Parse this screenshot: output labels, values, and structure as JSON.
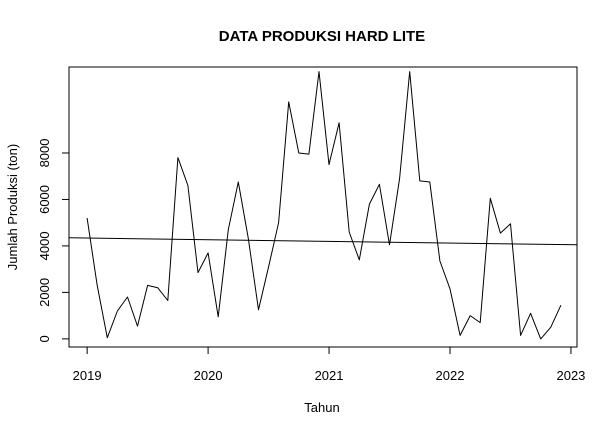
{
  "chart_data": {
    "type": "line",
    "title": "DATA PRODUKSI HARD LITE",
    "xlabel": "Tahun",
    "ylabel": "Jumlah Produksi (ton)",
    "xlim": [
      2018.85,
      2023.05
    ],
    "ylim": [
      -350,
      11700
    ],
    "x_ticks": [
      {
        "value": 2019,
        "label": "2019"
      },
      {
        "value": 2020,
        "label": "2020"
      },
      {
        "value": 2021,
        "label": "2021"
      },
      {
        "value": 2022,
        "label": "2022"
      },
      {
        "value": 2023,
        "label": "2023"
      }
    ],
    "y_ticks": [
      {
        "value": 0,
        "label": "0"
      },
      {
        "value": 2000,
        "label": "2000"
      },
      {
        "value": 4000,
        "label": "4000"
      },
      {
        "value": 6000,
        "label": "6000"
      },
      {
        "value": 8000,
        "label": "8000"
      }
    ],
    "grid": false,
    "series": [
      {
        "kind": "line",
        "color": "#000000",
        "x": [
          2019.0,
          2019.0833,
          2019.1667,
          2019.25,
          2019.3333,
          2019.4167,
          2019.5,
          2019.5833,
          2019.6667,
          2019.75,
          2019.8333,
          2019.9167,
          2020.0,
          2020.0833,
          2020.1667,
          2020.25,
          2020.3333,
          2020.4167,
          2020.5,
          2020.5833,
          2020.6667,
          2020.75,
          2020.8333,
          2020.9167,
          2021.0,
          2021.0833,
          2021.1667,
          2021.25,
          2021.3333,
          2021.4167,
          2021.5,
          2021.5833,
          2021.6667,
          2021.75,
          2021.8333,
          2021.9167,
          2022.0,
          2022.0833,
          2022.1667,
          2022.25,
          2022.3333,
          2022.4167,
          2022.5,
          2022.5833,
          2022.6667,
          2022.75,
          2022.8333,
          2022.9167
        ],
        "y": [
          5200,
          2300,
          50,
          1200,
          1800,
          550,
          2300,
          2200,
          1650,
          7800,
          6600,
          2850,
          3700,
          950,
          4700,
          6750,
          4300,
          1250,
          3100,
          5000,
          10200,
          8000,
          7950,
          11500,
          7500,
          9300,
          4600,
          3400,
          5800,
          6650,
          4050,
          6900,
          11500,
          6800,
          6750,
          3350,
          2150,
          150,
          1000,
          700,
          6050,
          4550,
          4950,
          150,
          1100,
          0,
          500,
          1450
        ]
      },
      {
        "kind": "trend",
        "color": "#000000",
        "x": [
          2018.85,
          2023.05
        ],
        "y": [
          4350,
          4050
        ]
      }
    ]
  }
}
